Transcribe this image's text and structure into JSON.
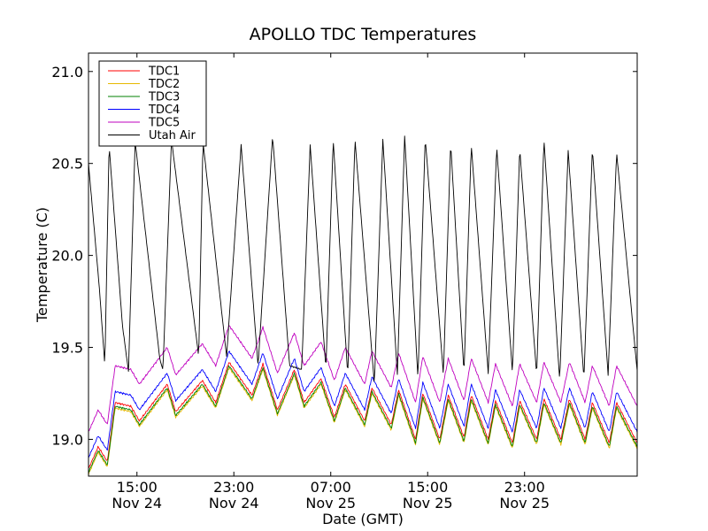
{
  "chart_data": {
    "type": "line",
    "title": "APOLLO TDC Temperatures",
    "xlabel": "Date (GMT)",
    "ylabel": "Temperature (C)",
    "ylim": [
      18.8,
      21.1
    ],
    "xlim_hours": [
      0,
      45.3
    ],
    "y_ticks": [
      {
        "value": 19.0,
        "label": "19.0"
      },
      {
        "value": 19.5,
        "label": "19.5"
      },
      {
        "value": 20.0,
        "label": "20.0"
      },
      {
        "value": 20.5,
        "label": "20.5"
      },
      {
        "value": 21.0,
        "label": "21.0"
      }
    ],
    "x_ticks": [
      {
        "hour": 4.0,
        "time": "15:00",
        "date": "Nov 24"
      },
      {
        "hour": 12.0,
        "time": "23:00",
        "date": "Nov 24"
      },
      {
        "hour": 20.0,
        "time": "07:00",
        "date": "Nov 25"
      },
      {
        "hour": 28.0,
        "time": "15:00",
        "date": "Nov 25"
      },
      {
        "hour": 36.0,
        "time": "23:00",
        "date": "Nov 25"
      }
    ],
    "legend": {
      "position": "top-left"
    },
    "series": [
      {
        "name": "TDC1",
        "color": "#ff0000",
        "offset": 0.0
      },
      {
        "name": "TDC2",
        "color": "#e6b800",
        "offset": -0.03
      },
      {
        "name": "TDC3",
        "color": "#008000",
        "offset": -0.02
      },
      {
        "name": "TDC4",
        "color": "#0000ff",
        "offset": 0.06
      },
      {
        "name": "TDC5",
        "color": "#bf00bf",
        "offset": 0.2
      },
      {
        "name": "Utah Air",
        "color": "#000000",
        "offset": 0.0
      }
    ],
    "tdc_base": {
      "hours": [
        0,
        0.8,
        1.55,
        2.2,
        3.5,
        4.2,
        6.5,
        7.2,
        9.4,
        10.5,
        11.6,
        13.5,
        14.4,
        15.6,
        17.0,
        17.8,
        19.2,
        20.3,
        21.2,
        22.8,
        23.4,
        25.0,
        25.6,
        27.0,
        27.6,
        29.0,
        29.7,
        31.0,
        31.6,
        33.0,
        33.6,
        35.0,
        35.6,
        37.0,
        37.6,
        39.0,
        39.7,
        41.0,
        41.6,
        43.0,
        43.6,
        45.3
      ],
      "values": [
        18.84,
        18.96,
        18.88,
        19.2,
        19.18,
        19.1,
        19.3,
        19.15,
        19.32,
        19.2,
        19.42,
        19.24,
        19.41,
        19.16,
        19.38,
        19.2,
        19.33,
        19.12,
        19.3,
        19.1,
        19.28,
        19.08,
        19.27,
        19.0,
        19.25,
        19.0,
        19.24,
        19.01,
        19.24,
        19.0,
        19.21,
        18.98,
        19.21,
        19.0,
        19.22,
        19.0,
        19.22,
        19.0,
        19.2,
        18.98,
        19.2,
        18.98
      ]
    },
    "air": {
      "hours": [
        0,
        0.9,
        1.35,
        1.7,
        2.8,
        3.3,
        3.85,
        5.9,
        6.15,
        6.85,
        9.1,
        9.45,
        11.4,
        12.6,
        14.0,
        15.2,
        16.6,
        17.6,
        18.3,
        19.6,
        20.2,
        21.4,
        22.0,
        23.6,
        24.3,
        25.5,
        26.1,
        27.2,
        27.8,
        29.3,
        29.9,
        31.0,
        31.6,
        33.0,
        33.7,
        35.0,
        35.6,
        37.0,
        37.6,
        38.9,
        39.6,
        40.9,
        41.6,
        42.9,
        43.6,
        45.3
      ],
      "values": [
        20.5,
        19.82,
        19.4,
        20.6,
        19.62,
        19.37,
        20.62,
        19.43,
        19.38,
        20.63,
        19.45,
        20.62,
        19.45,
        20.6,
        19.4,
        20.65,
        19.4,
        19.38,
        20.6,
        19.38,
        20.63,
        19.35,
        20.63,
        19.3,
        20.63,
        19.35,
        20.65,
        19.33,
        20.64,
        19.35,
        20.61,
        19.36,
        20.6,
        19.36,
        20.59,
        19.36,
        20.58,
        19.35,
        20.63,
        19.32,
        20.57,
        19.33,
        20.58,
        19.35,
        20.56,
        19.37
      ]
    }
  }
}
